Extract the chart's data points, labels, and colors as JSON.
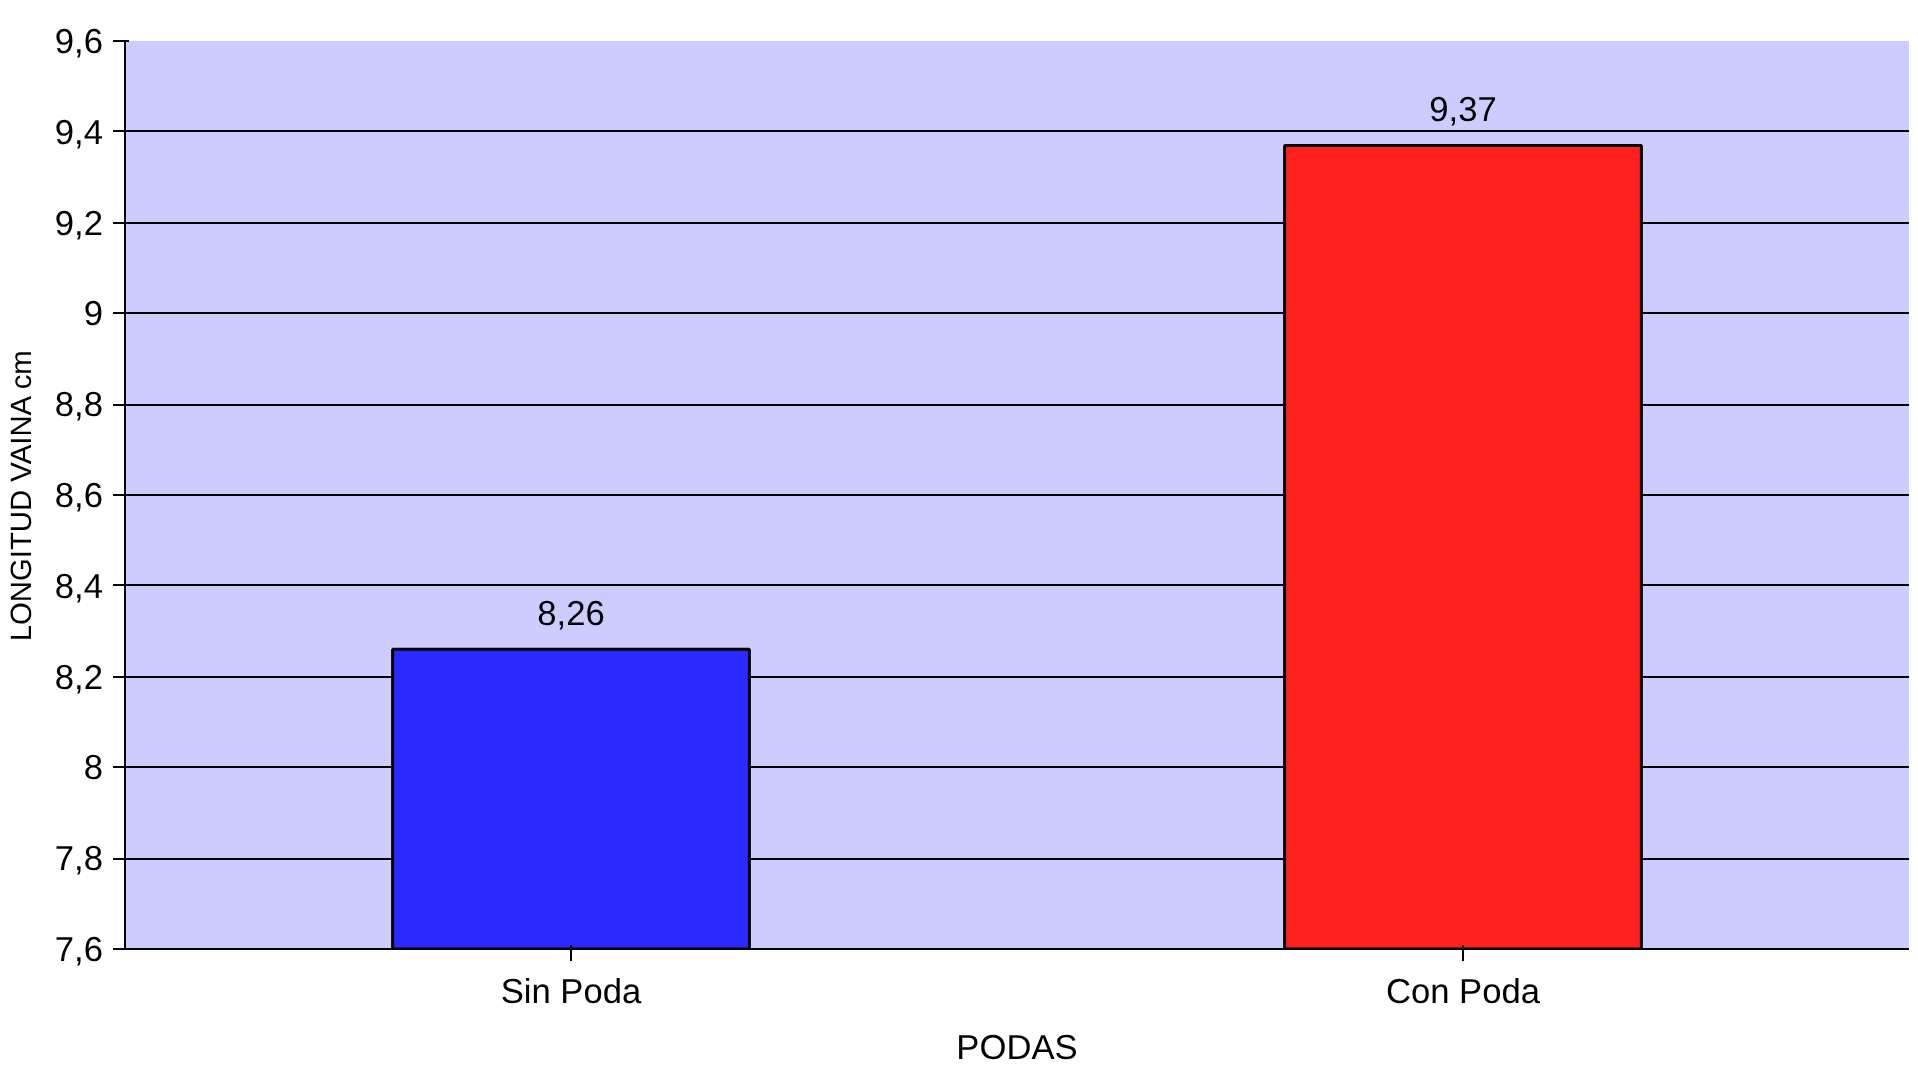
{
  "chart_data": {
    "type": "bar",
    "xlabel": "PODAS",
    "ylabel": "LONGITUD VAINA cm",
    "categories": [
      "Sin Poda",
      "Con Poda"
    ],
    "values": [
      8.26,
      9.37
    ],
    "colors": [
      "#2a2aff",
      "#ff2020"
    ],
    "value_labels": [
      "8,26",
      "9,37"
    ],
    "ylim": [
      7.6,
      9.6
    ],
    "yticks": [
      {
        "value": 7.6,
        "label": "7,6"
      },
      {
        "value": 7.8,
        "label": "7,8"
      },
      8,
      {
        "value": 8.2,
        "label": "8,2"
      },
      {
        "value": 8.4,
        "label": "8,4"
      },
      {
        "value": 8.6,
        "label": "8,6"
      },
      {
        "value": 8.8,
        "label": "8,8"
      },
      9,
      {
        "value": 9.2,
        "label": "9,2"
      },
      {
        "value": 9.4,
        "label": "9,4"
      },
      {
        "value": 9.6,
        "label": "9,6"
      }
    ],
    "grid": "y"
  }
}
